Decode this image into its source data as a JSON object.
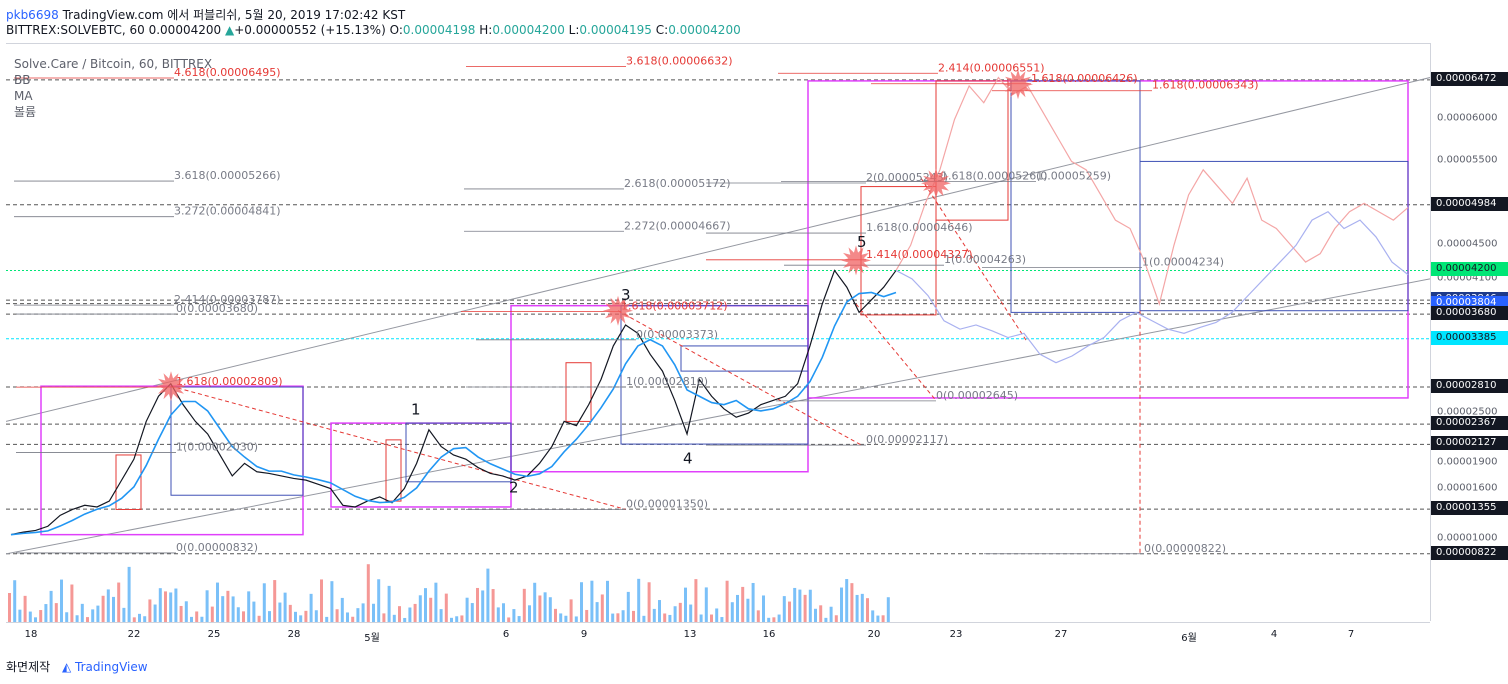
{
  "header": {
    "user": "pkb6698",
    "published": "TradingView.com 에서 퍼블리쉬, 5월 20, 2019 17:02:42 KST",
    "symbol": "BITTREX:SOLVEBTC, 60",
    "last": "0.00004200",
    "change_arrow": "▲",
    "change": "+0.00000552 (+15.13%)",
    "o_label": "O:",
    "o": "0.00004198",
    "h_label": "H:",
    "h": "0.00004200",
    "l_label": "L:",
    "l": "0.00004195",
    "c_label": "C:",
    "c": "0.00004200"
  },
  "legend": {
    "title": "Solve.Care / Bitcoin, 60, BITTREX",
    "bb": "BB",
    "ma": "MA",
    "volume": "볼륨"
  },
  "footer": {
    "left": "화면제작",
    "brand": "TradingView"
  },
  "colors": {
    "up": "#26a69a",
    "down": "#ef5350",
    "price": "#131722",
    "ma": "#2196f3",
    "fib_red": "#e53935",
    "fib_gray": "#787b86",
    "box_magenta": "#e040fb",
    "box_blue": "#3f51b5",
    "channel": "#9598a1",
    "projection_red": "#f4a6a6",
    "projection_blue": "#a9b1f0",
    "green_line": "#00e676",
    "cyan_line": "#00e5ff"
  },
  "chart_data": {
    "type": "line",
    "title": "Solve.Care / Bitcoin, 60, BITTREX",
    "x_ticks": [
      "18",
      "22",
      "25",
      "28",
      "5월",
      "6",
      "9",
      "13",
      "16",
      "20",
      "23",
      "27",
      "6월",
      "4",
      "7"
    ],
    "price_axis_labels": [
      "0.00006000",
      "0.00005500",
      "0.00004500",
      "0.00004100",
      "0.00002500",
      "0.00001900",
      "0.00001600",
      "0.00001000"
    ],
    "price_boxes": [
      {
        "value": "0.00006472",
        "bg": "#131722",
        "fg": "#ffffff"
      },
      {
        "value": "0.00004984",
        "bg": "#131722",
        "fg": "#ffffff"
      },
      {
        "value": "0.00004200",
        "bg": "#00e676",
        "fg": "#131722"
      },
      {
        "value": "0.00003846",
        "bg": "#1e3a8a",
        "fg": "#ffffff"
      },
      {
        "value": "0.00003804",
        "bg": "#2962ff",
        "fg": "#ffffff"
      },
      {
        "value": "0.00003680",
        "bg": "#131722",
        "fg": "#ffffff"
      },
      {
        "value": "0.00003385",
        "bg": "#00e5ff",
        "fg": "#131722"
      },
      {
        "value": "0.00002810",
        "bg": "#131722",
        "fg": "#ffffff"
      },
      {
        "value": "0.00002367",
        "bg": "#131722",
        "fg": "#ffffff"
      },
      {
        "value": "0.00002127",
        "bg": "#131722",
        "fg": "#ffffff"
      },
      {
        "value": "0.00001355",
        "bg": "#131722",
        "fg": "#ffffff"
      },
      {
        "value": "0.00000822",
        "bg": "#131722",
        "fg": "#ffffff"
      }
    ],
    "fib_labels": [
      {
        "text": "3.618(0.00006632)",
        "color": "red"
      },
      {
        "text": "4.618(0.00006495)",
        "color": "red"
      },
      {
        "text": "2.414(0.00006551)",
        "color": "red"
      },
      {
        "text": "1.618(0.00006426)",
        "color": "red"
      },
      {
        "text": "1.618(0.00006343)",
        "color": "red"
      },
      {
        "text": "3.618(0.00005266)",
        "color": "gray"
      },
      {
        "text": "2.618(0.00005172)",
        "color": "gray"
      },
      {
        "text": "2(0.00005243)",
        "color": "gray"
      },
      {
        "text": "1.618(0.00005261)",
        "color": "gray"
      },
      {
        "text": "(0.00005259)",
        "color": "gray"
      },
      {
        "text": "3.272(0.00004841)",
        "color": "gray"
      },
      {
        "text": "2.272(0.00004667)",
        "color": "gray"
      },
      {
        "text": "1.618(0.00004646)",
        "color": "gray"
      },
      {
        "text": "1.414(0.00004327)",
        "color": "red"
      },
      {
        "text": "1(0.00004263)",
        "color": "gray"
      },
      {
        "text": "1(0.00004234)",
        "color": "gray"
      },
      {
        "text": "2.414(0.00003787)",
        "color": "gray"
      },
      {
        "text": "1.618(0.00003712)",
        "color": "red"
      },
      {
        "text": "0(0.00003680)",
        "color": "gray"
      },
      {
        "text": "0(0.00003373)",
        "color": "gray"
      },
      {
        "text": "1.618(0.00002809)",
        "color": "red"
      },
      {
        "text": "1(0.00002810)",
        "color": "gray"
      },
      {
        "text": "0(0.00002645)",
        "color": "gray"
      },
      {
        "text": "0(0.00002117)",
        "color": "gray"
      },
      {
        "text": "1(0.00002030)",
        "color": "gray"
      },
      {
        "text": "0(0.00001350)",
        "color": "gray"
      },
      {
        "text": "0(0.00000822)",
        "color": "gray"
      },
      {
        "text": "0(0.00000832)",
        "color": "gray"
      }
    ],
    "wave_labels": [
      "1",
      "2",
      "3",
      "4",
      "5"
    ],
    "series_price": {
      "y": [
        1.05e-05,
        1.08e-05,
        1.1e-05,
        1.15e-05,
        1.28e-05,
        1.35e-05,
        1.4e-05,
        1.38e-05,
        1.45e-05,
        1.7e-05,
        1.95e-05,
        2.4e-05,
        2.7e-05,
        2.85e-05,
        2.6e-05,
        2.4e-05,
        2.25e-05,
        2e-05,
        1.75e-05,
        1.9e-05,
        1.8e-05,
        1.78e-05,
        1.75e-05,
        1.72e-05,
        1.7e-05,
        1.65e-05,
        1.6e-05,
        1.4e-05,
        1.38e-05,
        1.45e-05,
        1.5e-05,
        1.43e-05,
        1.6e-05,
        1.9e-05,
        2.3e-05,
        2.1e-05,
        2e-05,
        1.95e-05,
        1.85e-05,
        1.78e-05,
        1.75e-05,
        1.7e-05,
        1.75e-05,
        1.9e-05,
        2.1e-05,
        2.4e-05,
        2.35e-05,
        2.6e-05,
        2.9e-05,
        3.3e-05,
        3.55e-05,
        3.45e-05,
        3.2e-05,
        3e-05,
        2.65e-05,
        2.25e-05,
        2.9e-05,
        2.7e-05,
        2.55e-05,
        2.45e-05,
        2.5e-05,
        2.6e-05,
        2.65e-05,
        2.7e-05,
        2.85e-05,
        3.3e-05,
        3.8e-05,
        4.2e-05,
        4e-05,
        3.7e-05,
        3.85e-05,
        4e-05,
        4.2e-05
      ]
    },
    "series_projection_red": {
      "y": [
        4.2e-05,
        4.5e-05,
        5e-05,
        5.4e-05,
        6e-05,
        6.4e-05,
        6.2e-05,
        6.5e-05,
        6.3e-05,
        6.4e-05,
        6.1e-05,
        5.8e-05,
        5.5e-05,
        5.4e-05,
        5.1e-05,
        4.8e-05,
        4.7e-05,
        4.3e-05,
        3.8e-05,
        4.5e-05,
        5.1e-05,
        5.4e-05,
        5.2e-05,
        5e-05,
        5.3e-05,
        4.8e-05,
        4.7e-05,
        4.5e-05,
        4.3e-05,
        4.4e-05,
        4.7e-05,
        4.9e-05,
        5e-05,
        4.9e-05,
        4.8e-05,
        4.95e-05
      ]
    },
    "series_projection_blue": {
      "y": [
        4.2e-05,
        4.1e-05,
        3.9e-05,
        3.6e-05,
        3.5e-05,
        3.55e-05,
        3.48e-05,
        3.4e-05,
        3.45e-05,
        3.2e-05,
        3.1e-05,
        3.18e-05,
        3.3e-05,
        3.4e-05,
        3.6e-05,
        3.7e-05,
        3.6e-05,
        3.5e-05,
        3.45e-05,
        3.52e-05,
        3.58e-05,
        3.7e-05,
        3.9e-05,
        4.1e-05,
        4.3e-05,
        4.5e-05,
        4.8e-05,
        4.9e-05,
        4.7e-05,
        4.8e-05,
        4.6e-05,
        4.3e-05,
        4.15e-05
      ]
    },
    "ylim": [
      7e-06,
      6.9e-05
    ],
    "grid": false
  }
}
